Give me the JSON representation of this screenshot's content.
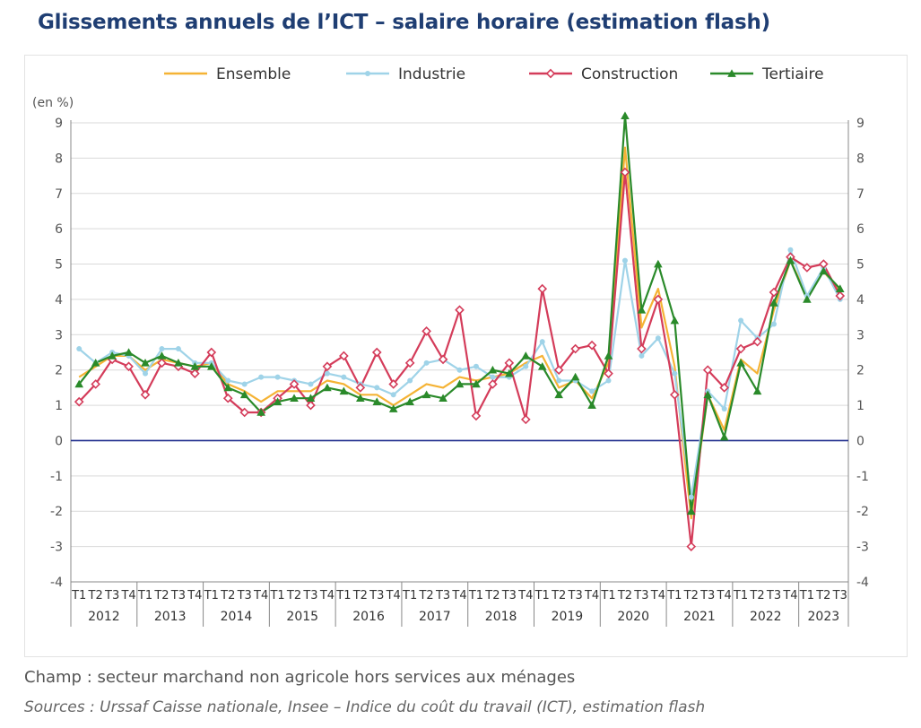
{
  "title": "Glissements annuels de l’ICT – salaire horaire (estimation flash)",
  "note": "Champ : secteur marchand non agricole hors services aux ménages",
  "source": "Sources : Urssaf Caisse nationale, Insee – Indice du coût du travail (ICT), estimation flash",
  "chart_data": {
    "type": "line",
    "y_unit_label": "(en %)",
    "ylim": [
      -4,
      9
    ],
    "y_ticks": [
      -4,
      -3,
      -2,
      -1,
      0,
      1,
      2,
      3,
      4,
      5,
      6,
      7,
      8,
      9
    ],
    "years": [
      "2012",
      "2013",
      "2014",
      "2015",
      "2016",
      "2017",
      "2018",
      "2019",
      "2020",
      "2021",
      "2022",
      "2023"
    ],
    "quarter_labels": [
      "T1",
      "T2",
      "T3",
      "T4"
    ],
    "categories": [
      "2012 T1",
      "2012 T2",
      "2012 T3",
      "2012 T4",
      "2013 T1",
      "2013 T2",
      "2013 T3",
      "2013 T4",
      "2014 T1",
      "2014 T2",
      "2014 T3",
      "2014 T4",
      "2015 T1",
      "2015 T2",
      "2015 T3",
      "2015 T4",
      "2016 T1",
      "2016 T2",
      "2016 T3",
      "2016 T4",
      "2017 T1",
      "2017 T2",
      "2017 T3",
      "2017 T4",
      "2018 T1",
      "2018 T2",
      "2018 T3",
      "2018 T4",
      "2019 T1",
      "2019 T2",
      "2019 T3",
      "2019 T4",
      "2020 T1",
      "2020 T2",
      "2020 T3",
      "2020 T4",
      "2021 T1",
      "2021 T2",
      "2021 T3",
      "2021 T4",
      "2022 T1",
      "2022 T2",
      "2022 T3",
      "2022 T4",
      "2023 T1",
      "2023 T2",
      "2023 T3"
    ],
    "legend_position": "top",
    "grid": "horizontal",
    "series": [
      {
        "name": "Ensemble",
        "color": "#f5b335",
        "marker": "none",
        "values": [
          1.8,
          2.1,
          2.4,
          2.4,
          2.0,
          2.3,
          2.2,
          2.1,
          2.2,
          1.6,
          1.4,
          1.1,
          1.4,
          1.4,
          1.4,
          1.7,
          1.6,
          1.3,
          1.3,
          1.0,
          1.3,
          1.6,
          1.5,
          1.8,
          1.7,
          1.8,
          1.9,
          2.2,
          2.4,
          1.5,
          1.7,
          1.2,
          2.2,
          8.3,
          3.2,
          4.3,
          2.1,
          -2.2,
          1.3,
          0.3,
          2.3,
          1.9,
          3.7,
          5.1,
          4.1,
          4.8,
          4.2
        ]
      },
      {
        "name": "Industrie",
        "color": "#9fd3e8",
        "marker": "dot",
        "values": [
          2.6,
          2.2,
          2.5,
          2.4,
          1.9,
          2.6,
          2.6,
          2.2,
          2.2,
          1.7,
          1.6,
          1.8,
          1.8,
          1.7,
          1.6,
          1.9,
          1.8,
          1.6,
          1.5,
          1.3,
          1.7,
          2.2,
          2.3,
          2.0,
          2.1,
          1.8,
          1.8,
          2.1,
          2.8,
          1.7,
          1.7,
          1.4,
          1.7,
          5.1,
          2.4,
          2.9,
          1.9,
          -1.6,
          1.4,
          0.9,
          3.4,
          2.9,
          3.3,
          5.4,
          4.1,
          4.9,
          4.0
        ]
      },
      {
        "name": "Construction",
        "color": "#d43c5a",
        "marker": "diamond",
        "values": [
          1.1,
          1.6,
          2.3,
          2.1,
          1.3,
          2.2,
          2.1,
          1.9,
          2.5,
          1.2,
          0.8,
          0.8,
          1.2,
          1.6,
          1.0,
          2.1,
          2.4,
          1.5,
          2.5,
          1.6,
          2.2,
          3.1,
          2.3,
          3.7,
          0.7,
          1.6,
          2.2,
          0.6,
          4.3,
          2.0,
          2.6,
          2.7,
          1.9,
          7.6,
          2.6,
          4.0,
          1.3,
          -3.0,
          2.0,
          1.5,
          2.6,
          2.8,
          4.2,
          5.2,
          4.9,
          5.0,
          4.1
        ]
      },
      {
        "name": "Tertiaire",
        "color": "#2a8a2a",
        "marker": "triangle",
        "values": [
          1.6,
          2.2,
          2.4,
          2.5,
          2.2,
          2.4,
          2.2,
          2.1,
          2.1,
          1.5,
          1.3,
          0.8,
          1.1,
          1.2,
          1.2,
          1.5,
          1.4,
          1.2,
          1.1,
          0.9,
          1.1,
          1.3,
          1.2,
          1.6,
          1.6,
          2.0,
          1.9,
          2.4,
          2.1,
          1.3,
          1.8,
          1.0,
          2.4,
          9.2,
          3.7,
          5.0,
          3.4,
          -2.0,
          1.3,
          0.1,
          2.2,
          1.4,
          3.9,
          5.1,
          4.0,
          4.8,
          4.3
        ]
      }
    ]
  }
}
